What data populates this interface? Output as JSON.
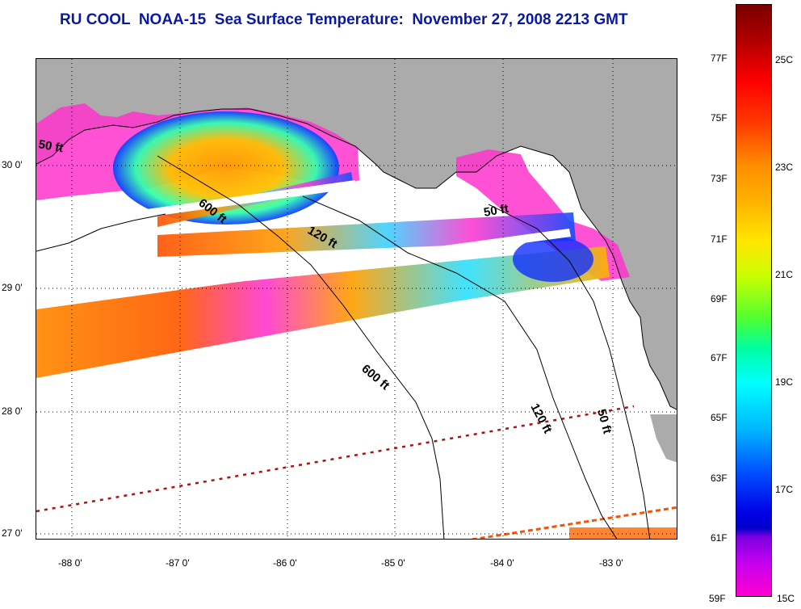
{
  "title": "RU COOL  NOAA-15  Sea Surface Temperature:  November 27, 2008 2213 GMT",
  "map": {
    "longitude_ticks": [
      "-88 0'",
      "-87 0'",
      "-86 0'",
      "-85 0'",
      "-84 0'",
      "-83 0'"
    ],
    "latitude_ticks": [
      "30 0'",
      "29 0'",
      "28 0'",
      "27 0'"
    ],
    "depth_contours": [
      "50 ft",
      "600 ft",
      "120 ft",
      "50 ft",
      "600 ft",
      "120 ft",
      "50 ft"
    ],
    "land_color": "#ababab",
    "water_color": "#ffffff"
  },
  "colorbar": {
    "fahrenheit": [
      "77F",
      "75F",
      "73F",
      "71F",
      "69F",
      "67F",
      "65F",
      "63F",
      "61F",
      "59F"
    ],
    "celsius": [
      "25C",
      "23C",
      "21C",
      "19C",
      "17C",
      "15C"
    ]
  }
}
